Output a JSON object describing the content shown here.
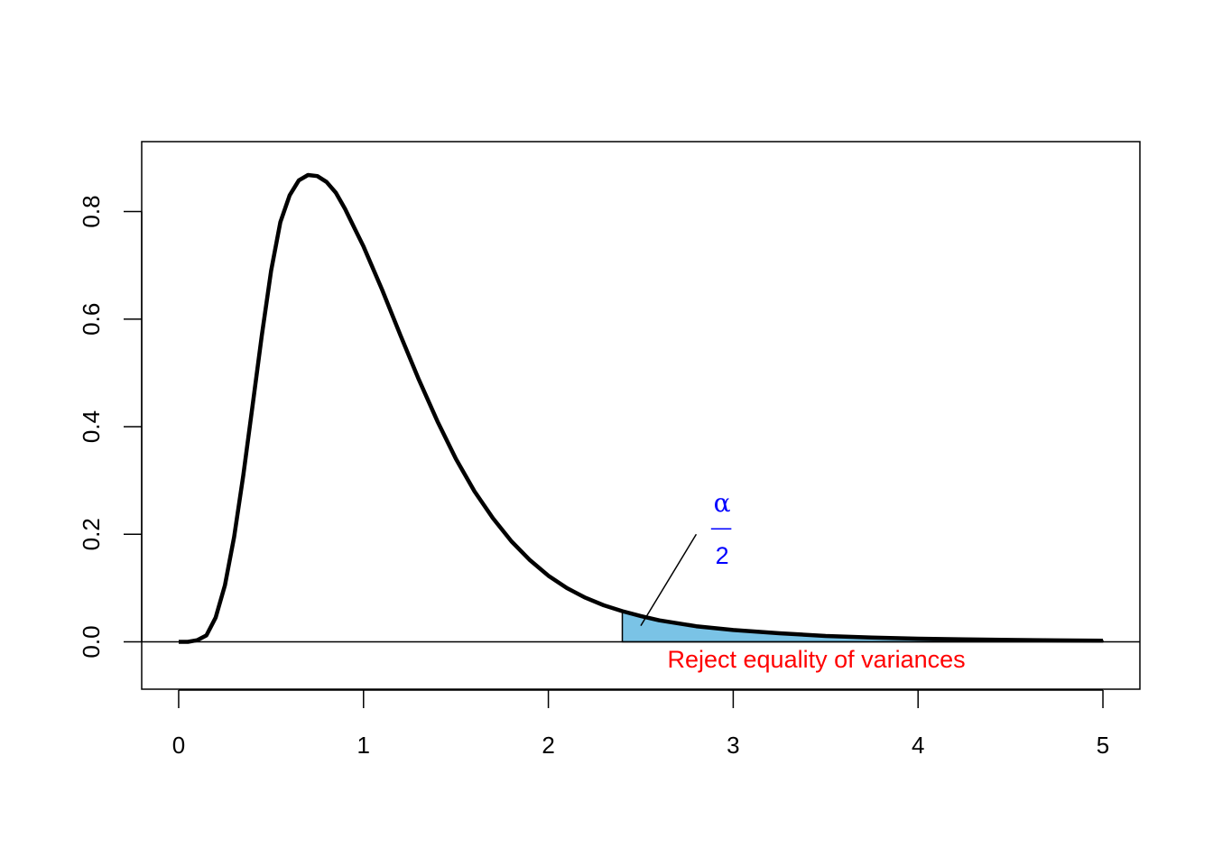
{
  "chart_data": {
    "type": "line",
    "title": "",
    "xlabel": "",
    "ylabel": "",
    "xlim": [
      -0.2,
      5.2
    ],
    "ylim": [
      -0.088,
      0.93
    ],
    "x_ticks": [
      0,
      1,
      2,
      3,
      4,
      5
    ],
    "x_tick_labels": [
      "0",
      "1",
      "2",
      "3",
      "4",
      "5"
    ],
    "y_ticks": [
      0.0,
      0.2,
      0.4,
      0.6,
      0.8
    ],
    "y_tick_labels": [
      "0.0",
      "0.2",
      "0.4",
      "0.6",
      "0.8"
    ],
    "grid": false,
    "series": [
      {
        "x": [
          0.0,
          0.05,
          0.1,
          0.15,
          0.2,
          0.25,
          0.3,
          0.35,
          0.4,
          0.45,
          0.5,
          0.55,
          0.6,
          0.65,
          0.7,
          0.75,
          0.8,
          0.85,
          0.9,
          0.95,
          1.0,
          1.1,
          1.2,
          1.3,
          1.4,
          1.5,
          1.6,
          1.7,
          1.8,
          1.9,
          2.0,
          2.1,
          2.2,
          2.3,
          2.4,
          2.5,
          2.6,
          2.8,
          3.0,
          3.25,
          3.5,
          3.75,
          4.0,
          4.25,
          4.5,
          4.75,
          5.0
        ],
        "y": [
          0.0,
          0.0,
          0.003,
          0.012,
          0.045,
          0.105,
          0.195,
          0.31,
          0.44,
          0.57,
          0.69,
          0.78,
          0.83,
          0.858,
          0.868,
          0.866,
          0.855,
          0.835,
          0.805,
          0.77,
          0.735,
          0.655,
          0.57,
          0.487,
          0.41,
          0.34,
          0.28,
          0.23,
          0.187,
          0.152,
          0.123,
          0.1,
          0.082,
          0.068,
          0.057,
          0.048,
          0.04,
          0.029,
          0.022,
          0.016,
          0.011,
          0.008,
          0.006,
          0.0045,
          0.0035,
          0.0027,
          0.002
        ],
        "color": "#000000"
      }
    ],
    "shaded_region": {
      "x_from": 2.4,
      "x_to": 5.0,
      "color": "#7ac3e6"
    },
    "annotations": {
      "rejection_label": "Reject equality of variances",
      "rejection_color": "#ff0000",
      "alpha_numerator": "α",
      "alpha_denominator": "2",
      "alpha_color": "#0000ff"
    }
  }
}
